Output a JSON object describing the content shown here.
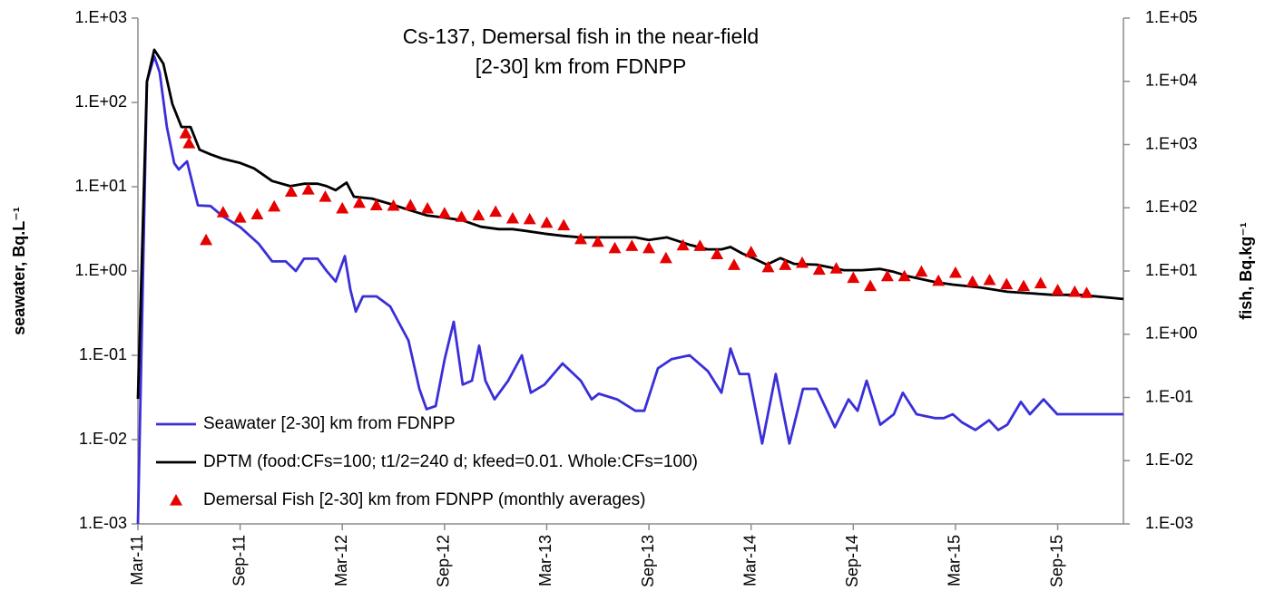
{
  "chart_data": {
    "type": "line",
    "title": [
      "Cs-137, Demersal fish in the near-field",
      "[2-30] km from FDNPP"
    ],
    "ylabel": "seawater, Bq.L⁻¹",
    "y2label": "fish, Bq.kg⁻¹",
    "ylog": true,
    "y2log": true,
    "legend": "lower left",
    "xlim": [
      0,
      57.86
    ],
    "xticks": [
      {
        "value": 0,
        "label": "Mar-11"
      },
      {
        "value": 6,
        "label": "Sep-11"
      },
      {
        "value": 12,
        "label": "Mar-12"
      },
      {
        "value": 18,
        "label": "Sep-12"
      },
      {
        "value": 24,
        "label": "Mar-13"
      },
      {
        "value": 30,
        "label": "Sep-13"
      },
      {
        "value": 36,
        "label": "Mar-14"
      },
      {
        "value": 42,
        "label": "Sep-14"
      },
      {
        "value": 48,
        "label": "Mar-15"
      },
      {
        "value": 54,
        "label": "Sep-15"
      }
    ],
    "ylim": [
      0.001,
      1000
    ],
    "yticks": [
      {
        "value": 0.001,
        "label": "1.E-03"
      },
      {
        "value": 0.01,
        "label": "1.E-02"
      },
      {
        "value": 0.1,
        "label": "1.E-01"
      },
      {
        "value": 1,
        "label": "1.E+00"
      },
      {
        "value": 10,
        "label": "1.E+01"
      },
      {
        "value": 100,
        "label": "1.E+02"
      },
      {
        "value": 1000,
        "label": "1.E+03"
      }
    ],
    "y2lim": [
      0.001,
      100000
    ],
    "y2ticks": [
      {
        "value": 0.001,
        "label": "1.E-03"
      },
      {
        "value": 0.01,
        "label": "1.E-02"
      },
      {
        "value": 0.1,
        "label": "1.E-01"
      },
      {
        "value": 1,
        "label": "1.E+00"
      },
      {
        "value": 10,
        "label": "1.E+01"
      },
      {
        "value": 100,
        "label": "1.E+02"
      },
      {
        "value": 1000,
        "label": "1.E+03"
      },
      {
        "value": 10000,
        "label": "1.E+04"
      },
      {
        "value": 100000,
        "label": "1.E+05"
      }
    ],
    "series": [
      {
        "name": "Seawater [2-30] km from FDNPP",
        "color": "#3a2fd8",
        "style": "line",
        "axis": "y",
        "x": [
          0,
          0.53,
          0.96,
          1.28,
          1.7,
          2.13,
          2.4,
          2.88,
          3.52,
          4.26,
          4.96,
          6.02,
          7.09,
          7.88,
          8.68,
          9.27,
          9.75,
          10.55,
          11.08,
          11.61,
          12.15,
          12.47,
          12.79,
          13.21,
          14.01,
          14.81,
          15.88,
          16.52,
          16.94,
          17.48,
          18.01,
          18.54,
          19.07,
          19.61,
          20.03,
          20.4,
          20.94,
          21.74,
          22.54,
          23.07,
          23.87,
          24.93,
          26.0,
          26.64,
          27.06,
          28.13,
          29.2,
          29.73,
          30.53,
          31.33,
          32.39,
          33.46,
          34.26,
          34.79,
          35.32,
          35.86,
          36.65,
          37.45,
          38.25,
          39.05,
          39.85,
          40.92,
          41.72,
          42.25,
          42.78,
          43.58,
          44.38,
          44.91,
          45.71,
          46.78,
          47.31,
          47.84,
          48.38,
          49.17,
          49.97,
          50.51,
          51.04,
          51.84,
          52.37,
          53.17,
          53.97,
          57.86
        ],
        "values": [
          0.001,
          177,
          353,
          226,
          51,
          19,
          16,
          20,
          6,
          5.9,
          4.5,
          3.3,
          2.1,
          1.3,
          1.3,
          1.0,
          1.4,
          1.4,
          1.0,
          0.75,
          1.5,
          0.6,
          0.33,
          0.5,
          0.5,
          0.38,
          0.15,
          0.04,
          0.023,
          0.025,
          0.09,
          0.25,
          0.045,
          0.05,
          0.13,
          0.05,
          0.03,
          0.05,
          0.1,
          0.036,
          0.045,
          0.08,
          0.05,
          0.03,
          0.035,
          0.03,
          0.022,
          0.022,
          0.07,
          0.09,
          0.1,
          0.065,
          0.036,
          0.12,
          0.06,
          0.06,
          0.009,
          0.06,
          0.009,
          0.04,
          0.04,
          0.014,
          0.03,
          0.022,
          0.05,
          0.015,
          0.02,
          0.036,
          0.02,
          0.018,
          0.018,
          0.02,
          0.016,
          0.013,
          0.017,
          0.013,
          0.015,
          0.028,
          0.02,
          0.03,
          0.02,
          0.02
        ]
      },
      {
        "name": "DPTM (food:CFs=100; t1/2=240 d; kfeed=0.01. Whole:CFs=100)",
        "color": "#000000",
        "style": "line",
        "axis": "y2",
        "x": [
          0,
          0.53,
          0.96,
          1.49,
          2.02,
          2.56,
          3.09,
          3.62,
          4.26,
          4.96,
          6.02,
          6.82,
          7.88,
          8.95,
          9.75,
          10.55,
          11.08,
          11.61,
          12.25,
          12.68,
          13.74,
          14.81,
          15.88,
          16.94,
          18.01,
          19.07,
          20.14,
          21.2,
          22.0,
          22.8,
          23.87,
          24.93,
          26.0,
          27.06,
          28.13,
          29.2,
          29.99,
          31.06,
          32.39,
          33.46,
          34.26,
          34.79,
          35.48,
          36.12,
          36.92,
          37.72,
          38.52,
          39.85,
          41.45,
          42.51,
          43.58,
          44.38,
          45.18,
          46.78,
          47.84,
          49.44,
          51.04,
          52.64,
          53.7,
          55.3,
          57.86
        ],
        "values": [
          0.095,
          9900,
          31600,
          19000,
          4400,
          1900,
          1900,
          830,
          700,
          600,
          510,
          420,
          265,
          220,
          240,
          240,
          220,
          190,
          250,
          150,
          140,
          115,
          93,
          76,
          70,
          63,
          50,
          46,
          46,
          43,
          39,
          36,
          34,
          34,
          34,
          34,
          31,
          34,
          26,
          22,
          22,
          24,
          19,
          16,
          12.6,
          16,
          13,
          12.6,
          10.3,
          10.3,
          10.8,
          9.7,
          8.3,
          6.7,
          6.1,
          5.5,
          4.7,
          4.4,
          4.2,
          4.2,
          3.6
        ]
      },
      {
        "name": "Demersal Fish [2-30] km from FDNPP (monthly averages)",
        "color": "#e60000",
        "style": "triangles",
        "axis": "y2",
        "x": [
          2.8,
          3.0,
          4,
          5,
          6,
          7,
          8,
          9,
          10,
          11,
          12,
          13,
          14,
          15,
          16,
          17,
          18,
          19,
          20,
          21,
          22,
          23,
          24,
          25,
          26,
          27,
          28,
          29,
          30,
          31,
          32,
          33,
          34,
          35,
          36,
          37,
          38,
          39,
          40,
          41,
          42,
          43,
          44,
          45,
          46,
          47,
          48,
          49,
          50,
          51,
          52,
          53,
          54,
          55,
          55.7
        ],
        "values": [
          1510,
          1050,
          31,
          85,
          70,
          79,
          105,
          180,
          195,
          150,
          98,
          120,
          110,
          108,
          110,
          98,
          82,
          72,
          76,
          87,
          68,
          66,
          58,
          53,
          32,
          29,
          23,
          25,
          23,
          16,
          25.5,
          25,
          18.5,
          12.5,
          20,
          11.5,
          12.5,
          13.5,
          10.5,
          11,
          7.8,
          5.8,
          8.3,
          8.3,
          9.8,
          7,
          9.4,
          6.8,
          7.2,
          6.2,
          5.8,
          6.4,
          5,
          4.7,
          4.5
        ]
      }
    ]
  }
}
